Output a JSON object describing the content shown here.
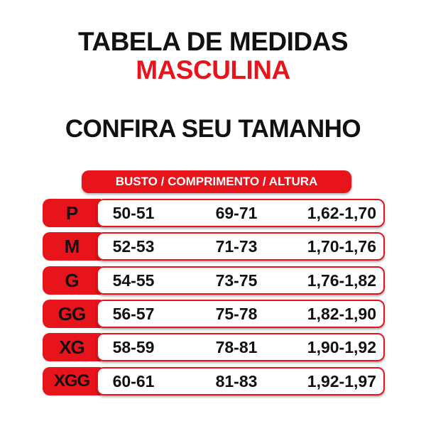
{
  "header": {
    "title": "TABELA DE MEDIDAS",
    "subtitle": "MASCULINA"
  },
  "heading": "CONFIRA SEU TAMANHO",
  "table": {
    "columns": "BUSTO / COMPRIMENTO / ALTURA",
    "rows": [
      [
        "P",
        "50-51",
        "69-71",
        "1,62-1,70"
      ],
      [
        "M",
        "52-53",
        "71-73",
        "1,70-1,76"
      ],
      [
        "G",
        "54-55",
        "73-75",
        "1,76-1,82"
      ],
      [
        "GG",
        "56-57",
        "75-78",
        "1,82-1,90"
      ],
      [
        "XG",
        "58-59",
        "78-81",
        "1,90-1,92"
      ],
      [
        "XGG",
        "60-61",
        "81-83",
        "1,92-1,97"
      ]
    ]
  }
}
